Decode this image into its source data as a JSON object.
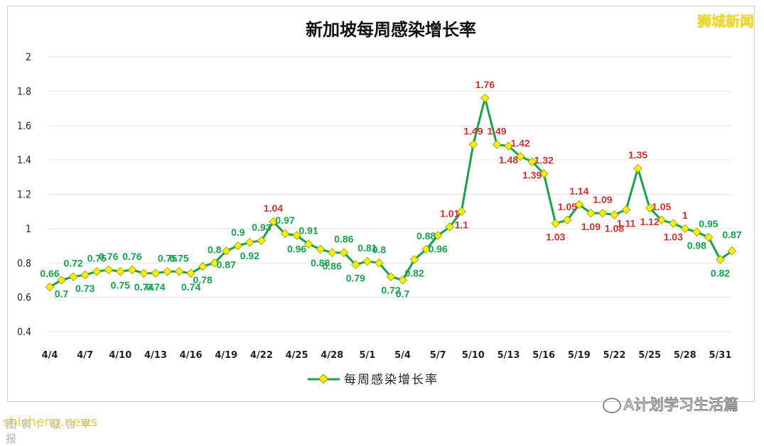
{
  "brand": "狮城新闻",
  "watermark_left": "shicheng.news",
  "watermark_left_under": "图表：联合早报",
  "watermark_right": "A计划学习生活篇",
  "colors": {
    "line": "#16a34a",
    "marker": "#f5f000",
    "marker_stroke": "#9a9a00",
    "label_low": "#16a34a",
    "label_high": "#d32f2f",
    "grid": "#e3e3e3"
  },
  "chart_data": {
    "type": "line",
    "title": "新加坡每周感染增长率",
    "xlabel": "",
    "ylabel": "",
    "ylim": [
      0.4,
      2
    ],
    "yticks": [
      "0.4",
      "0.6",
      "0.8",
      "1",
      "1.2",
      "1.4",
      "1.6",
      "1.8",
      "2"
    ],
    "grid": true,
    "legend_position": "bottom",
    "x_tick_labels": [
      "4/4",
      "4/7",
      "4/10",
      "4/13",
      "4/16",
      "4/19",
      "4/22",
      "4/25",
      "4/28",
      "5/1",
      "5/4",
      "5/7",
      "5/10",
      "5/13",
      "5/16",
      "5/19",
      "5/22",
      "5/25",
      "5/28",
      "5/31"
    ],
    "x": [
      "4/4",
      "4/5",
      "4/6",
      "4/7",
      "4/8",
      "4/9",
      "4/10",
      "4/11",
      "4/12",
      "4/13",
      "4/14",
      "4/15",
      "4/16",
      "4/17",
      "4/18",
      "4/19",
      "4/20",
      "4/21",
      "4/22",
      "4/23",
      "4/24",
      "4/25",
      "4/26",
      "4/27",
      "4/28",
      "4/29",
      "4/30",
      "5/1",
      "5/2",
      "5/3",
      "5/4",
      "5/5",
      "5/6",
      "5/7",
      "5/8",
      "5/9",
      "5/10",
      "5/11",
      "5/12",
      "5/13",
      "5/14",
      "5/15",
      "5/16",
      "5/17",
      "5/18",
      "5/19",
      "5/20",
      "5/21",
      "5/22",
      "5/23",
      "5/24",
      "5/25",
      "5/26",
      "5/27",
      "5/28",
      "5/29",
      "5/30",
      "5/31",
      "6/1"
    ],
    "series": [
      {
        "name": "每周感染增长率",
        "values": [
          0.66,
          0.7,
          0.72,
          0.73,
          0.75,
          0.76,
          0.75,
          0.76,
          0.74,
          0.74,
          0.75,
          0.75,
          0.74,
          0.78,
          0.8,
          0.87,
          0.9,
          0.92,
          0.93,
          1.04,
          0.97,
          0.96,
          0.91,
          0.88,
          0.86,
          0.86,
          0.79,
          0.81,
          0.8,
          0.72,
          0.7,
          0.82,
          0.88,
          0.96,
          1.01,
          1.1,
          1.49,
          1.76,
          1.49,
          1.48,
          1.42,
          1.39,
          1.32,
          1.03,
          1.05,
          1.14,
          1.09,
          1.09,
          1.08,
          1.11,
          1.35,
          1.12,
          1.05,
          1.03,
          1.0,
          0.98,
          0.95,
          0.82,
          0.87
        ],
        "labels": [
          "0.66",
          "0.7",
          "0.72",
          "0.73",
          "0.75",
          "0.76",
          "0.75",
          "0.76",
          "0.74",
          "0.74",
          "0.75",
          "0.75",
          "0.74",
          "0.78",
          "0.8",
          "0.87",
          "0.9",
          "0.92",
          "0.93",
          "1.04",
          "0.97",
          "0.96",
          "0.91",
          "0.88",
          "0.86",
          "0.86",
          "0.79",
          "0.81",
          "0.8",
          "0.72",
          "0.7",
          "0.82",
          "0.88",
          "0.96",
          "1.01",
          "1.1",
          "1.49",
          "1.76",
          "1.49",
          "1.48",
          "1.42",
          "1.39",
          "1.32",
          "1.03",
          "1.05",
          "1.14",
          "1.09",
          "1.09",
          "1.08",
          "1.11",
          "1.35",
          "1.12",
          "1.05",
          "1.03",
          "1",
          "0.98",
          "0.95",
          "0.82",
          "0.87"
        ]
      }
    ]
  }
}
